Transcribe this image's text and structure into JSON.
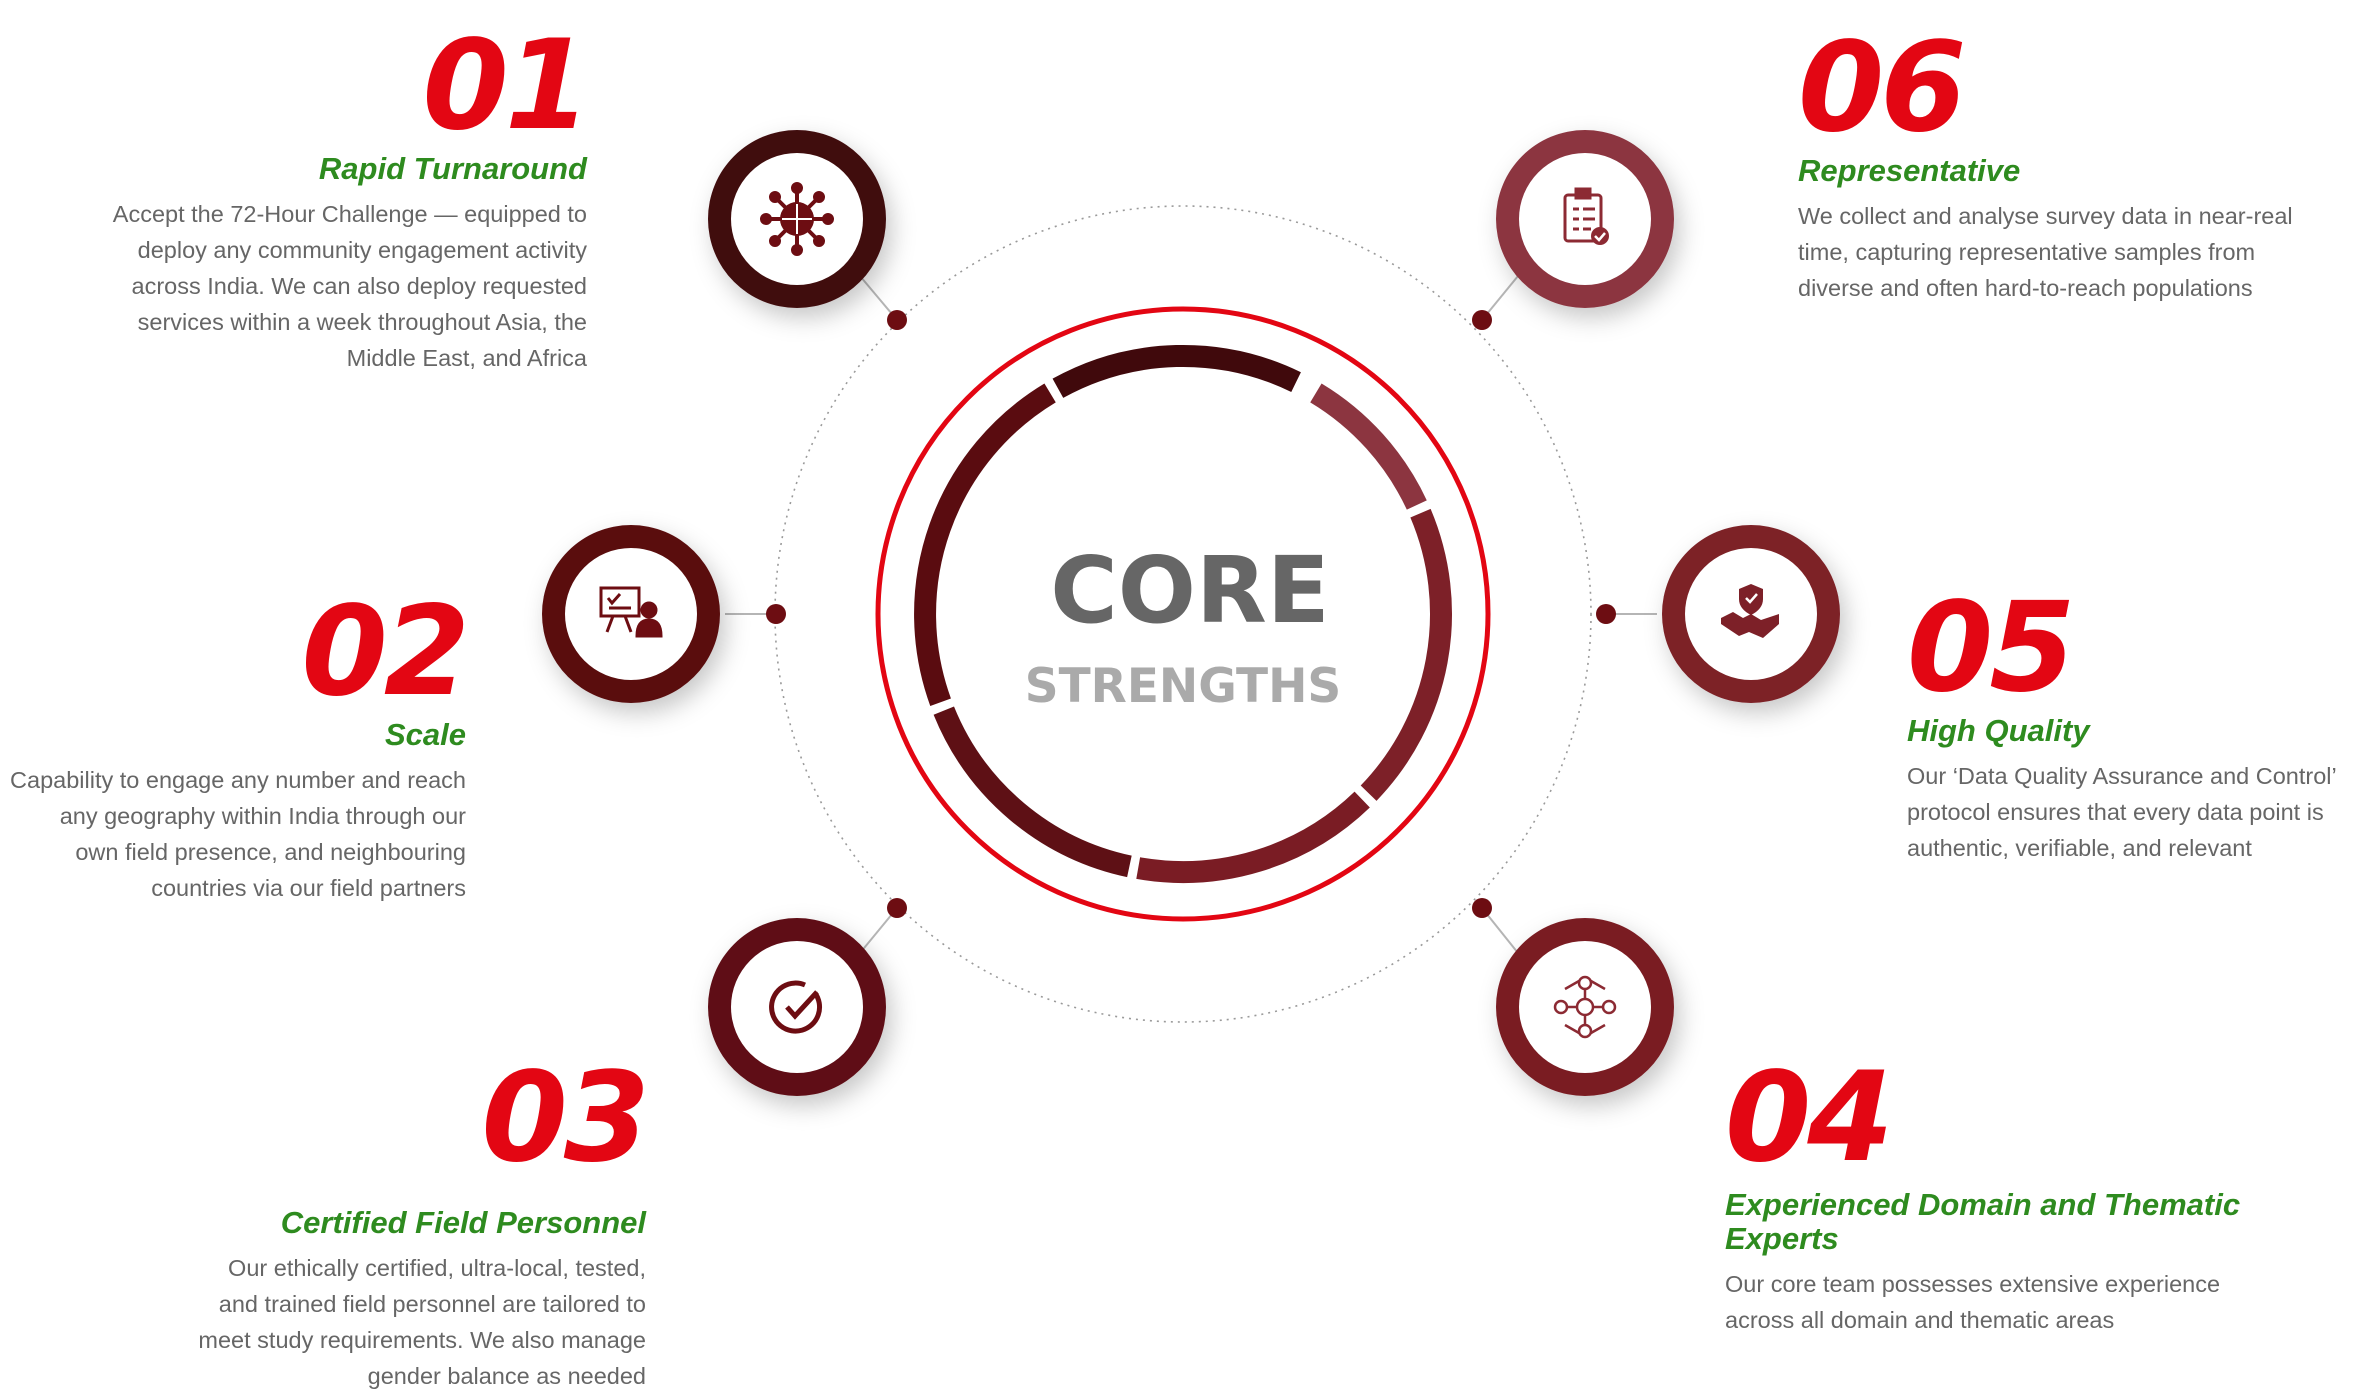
{
  "center": {
    "title": "CORE",
    "subtitle": "STRENGTHS"
  },
  "colors": {
    "number": "#e30613",
    "title": "#2e8b1f",
    "text": "#666666",
    "ring_outer": "#e30613",
    "center_title": "#666666",
    "center_subtitle": "#aaaaaa"
  },
  "items": [
    {
      "num": "01",
      "title": "Rapid Turnaround",
      "icon": "globe-network-icon",
      "color": "#40090c",
      "lines": [
        "Accept the 72-Hour Challenge — equipped to",
        "deploy any community engagement activity",
        "across India. We can also deploy requested",
        "services within a week throughout Asia, the",
        "Middle East, and Africa"
      ]
    },
    {
      "num": "02",
      "title": "Scale",
      "icon": "presentation-board-icon",
      "color": "#5a0c10",
      "lines": [
        "Capability to engage any number and reach",
        "any geography within India through our",
        "own field presence, and neighbouring",
        "countries via our field partners"
      ]
    },
    {
      "num": "03",
      "title": "Certified Field Personnel",
      "icon": "timer-check-icon",
      "color": "#5e1015",
      "lines": [
        "Our ethically certified, ultra-local, tested,",
        "and trained field personnel are tailored to",
        "meet study requirements. We also manage",
        "gender balance as needed"
      ]
    },
    {
      "num": "04",
      "title": "Experienced Domain and Thematic Experts",
      "icon": "expert-network-icon",
      "color": "#7a1c24",
      "lines": [
        "Our core team possesses extensive experience",
        "across all domain and thematic areas"
      ]
    },
    {
      "num": "05",
      "title": "High Quality",
      "icon": "handshake-shield-icon",
      "color": "#7d2028",
      "lines": [
        "Our ‘Data Quality Assurance and Control’",
        "protocol ensures that every data point is",
        "authentic, verifiable, and relevant"
      ]
    },
    {
      "num": "06",
      "title": "Representative",
      "icon": "clipboard-check-icon",
      "color": "#8c3540",
      "lines": [
        "We collect and analyse survey data in near-real",
        "time, capturing representative samples from",
        "diverse and often hard-to-reach populations"
      ]
    }
  ]
}
